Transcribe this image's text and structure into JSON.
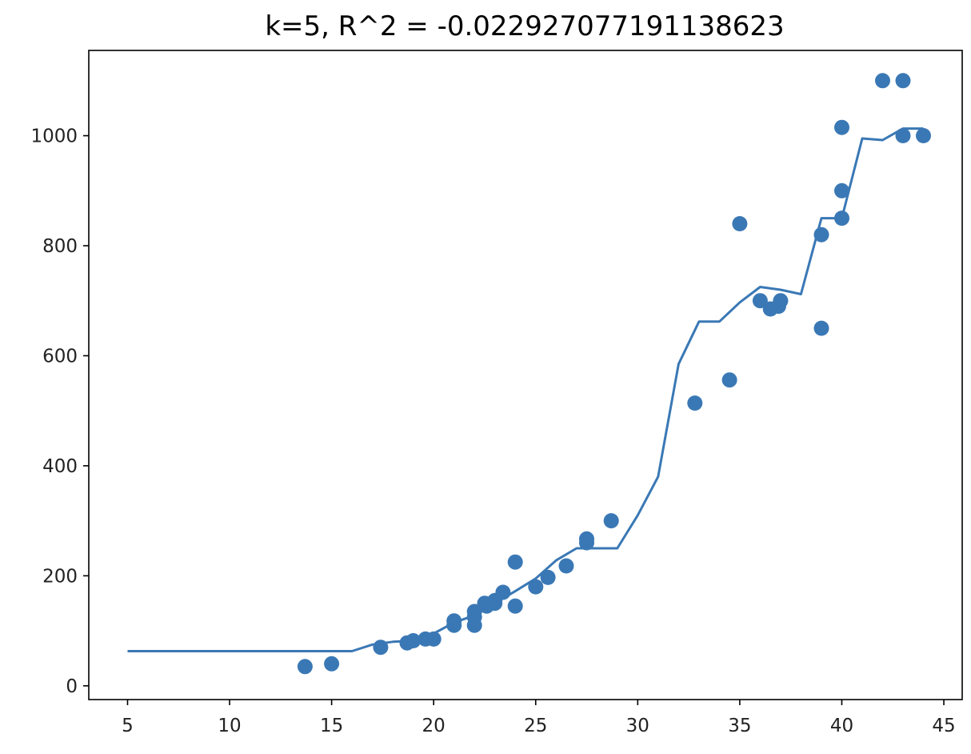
{
  "chart_data": {
    "type": "scatter",
    "title": "k=5, R^2 = -0.022927077191138623",
    "xlabel": "",
    "ylabel": "",
    "xlim": [
      3.1,
      45.9
    ],
    "ylim": [
      -25,
      1155
    ],
    "grid": false,
    "color": "#3a78b5",
    "x_ticks": [
      "5",
      "10",
      "15",
      "20",
      "25",
      "30",
      "35",
      "40",
      "45"
    ],
    "y_ticks": [
      "0",
      "200",
      "400",
      "600",
      "800",
      "1000"
    ],
    "series": [
      {
        "type": "scatter",
        "points": [
          {
            "x": 13.7,
            "y": 35
          },
          {
            "x": 15.0,
            "y": 40
          },
          {
            "x": 17.4,
            "y": 70
          },
          {
            "x": 18.7,
            "y": 78
          },
          {
            "x": 19.0,
            "y": 82
          },
          {
            "x": 19.6,
            "y": 85
          },
          {
            "x": 20.0,
            "y": 85
          },
          {
            "x": 21.0,
            "y": 110
          },
          {
            "x": 21.0,
            "y": 118
          },
          {
            "x": 22.0,
            "y": 110
          },
          {
            "x": 22.0,
            "y": 125
          },
          {
            "x": 22.0,
            "y": 135
          },
          {
            "x": 22.5,
            "y": 150
          },
          {
            "x": 22.6,
            "y": 145
          },
          {
            "x": 23.0,
            "y": 150
          },
          {
            "x": 23.0,
            "y": 155
          },
          {
            "x": 23.4,
            "y": 170
          },
          {
            "x": 24.0,
            "y": 145
          },
          {
            "x": 24.0,
            "y": 225
          },
          {
            "x": 25.0,
            "y": 180
          },
          {
            "x": 25.6,
            "y": 197
          },
          {
            "x": 26.5,
            "y": 218
          },
          {
            "x": 27.5,
            "y": 260
          },
          {
            "x": 27.5,
            "y": 267
          },
          {
            "x": 28.7,
            "y": 300
          },
          {
            "x": 32.8,
            "y": 514
          },
          {
            "x": 34.5,
            "y": 556
          },
          {
            "x": 35.0,
            "y": 840
          },
          {
            "x": 36.0,
            "y": 700
          },
          {
            "x": 36.5,
            "y": 685
          },
          {
            "x": 36.9,
            "y": 690
          },
          {
            "x": 37.0,
            "y": 700
          },
          {
            "x": 39.0,
            "y": 650
          },
          {
            "x": 39.0,
            "y": 820
          },
          {
            "x": 40.0,
            "y": 850
          },
          {
            "x": 40.0,
            "y": 900
          },
          {
            "x": 40.0,
            "y": 1015
          },
          {
            "x": 42.0,
            "y": 1100
          },
          {
            "x": 43.0,
            "y": 1000
          },
          {
            "x": 43.0,
            "y": 1100
          },
          {
            "x": 44.0,
            "y": 1000
          }
        ]
      },
      {
        "type": "line",
        "points": [
          {
            "x": 5,
            "y": 63
          },
          {
            "x": 16,
            "y": 63
          },
          {
            "x": 17,
            "y": 75
          },
          {
            "x": 18,
            "y": 80
          },
          {
            "x": 19,
            "y": 82
          },
          {
            "x": 20,
            "y": 95
          },
          {
            "x": 21,
            "y": 115
          },
          {
            "x": 22,
            "y": 128
          },
          {
            "x": 23,
            "y": 150
          },
          {
            "x": 24,
            "y": 172
          },
          {
            "x": 25,
            "y": 195
          },
          {
            "x": 26,
            "y": 228
          },
          {
            "x": 27,
            "y": 250
          },
          {
            "x": 28,
            "y": 250
          },
          {
            "x": 29,
            "y": 250
          },
          {
            "x": 30,
            "y": 310
          },
          {
            "x": 31,
            "y": 380
          },
          {
            "x": 32,
            "y": 585
          },
          {
            "x": 33,
            "y": 662
          },
          {
            "x": 34,
            "y": 662
          },
          {
            "x": 35,
            "y": 697
          },
          {
            "x": 36,
            "y": 725
          },
          {
            "x": 37,
            "y": 720
          },
          {
            "x": 38,
            "y": 712
          },
          {
            "x": 39,
            "y": 850
          },
          {
            "x": 40,
            "y": 850
          },
          {
            "x": 41,
            "y": 995
          },
          {
            "x": 42,
            "y": 992
          },
          {
            "x": 43,
            "y": 1013
          },
          {
            "x": 44,
            "y": 1013
          }
        ]
      }
    ]
  }
}
